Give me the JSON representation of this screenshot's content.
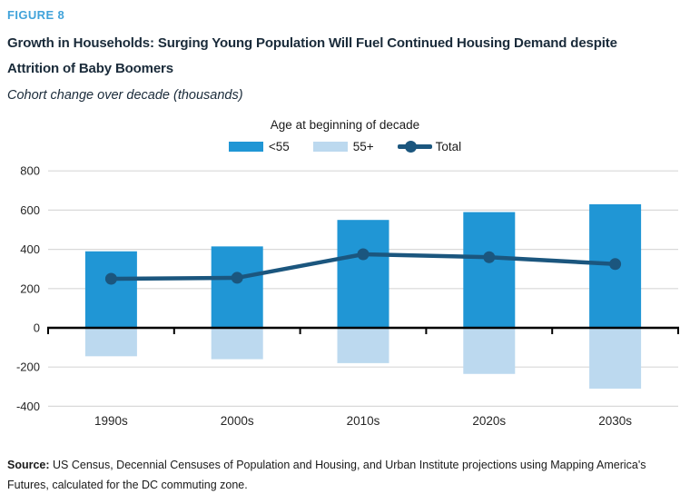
{
  "figure_label": "FIGURE 8",
  "title_lines": [
    "Growth in Households: Surging Young Population Will Fuel Continued Housing Demand despite",
    "Attrition of Baby Boomers"
  ],
  "subtitle": "Cohort change over decade (thousands)",
  "legend": {
    "title": "Age at beginning of decade",
    "items": [
      {
        "label": "<55",
        "type": "rect",
        "color": "#2096d5"
      },
      {
        "label": "55+",
        "type": "rect",
        "color": "#bcd9ef"
      },
      {
        "label": "Total",
        "type": "line",
        "color": "#1b567e"
      }
    ]
  },
  "chart_data": {
    "type": "bar",
    "categories": [
      "1990s",
      "2000s",
      "2010s",
      "2020s",
      "2030s"
    ],
    "series": [
      {
        "name": "<55",
        "type": "bar",
        "color": "#2096d5",
        "values": [
          390,
          415,
          550,
          590,
          630
        ]
      },
      {
        "name": "55+",
        "type": "bar",
        "color": "#bcd9ef",
        "values": [
          -145,
          -160,
          -180,
          -235,
          -310
        ]
      },
      {
        "name": "Total",
        "type": "line",
        "color": "#1b567e",
        "values": [
          250,
          255,
          375,
          360,
          325
        ]
      }
    ],
    "title": "Growth in Households: Surging Young Population Will Fuel Continued Housing Demand despite Attrition of Baby Boomers",
    "xlabel": "",
    "ylabel": "Cohort change over decade (thousands)",
    "ylim": [
      -400,
      800
    ],
    "ytick_interval": 200,
    "grid": true,
    "legend_position": "top-center"
  },
  "source": {
    "label": "Source:",
    "text": " US Census, Decennial Censuses of Population and Housing, and Urban Institute projections using Mapping America's Futures, calculated for the DC commuting zone."
  },
  "colors": {
    "figure_label": "#41a3da",
    "title_text": "#1a2b3a",
    "axis": "#000000",
    "gridline": "#d9d9d9",
    "tick_label": "#262626"
  }
}
